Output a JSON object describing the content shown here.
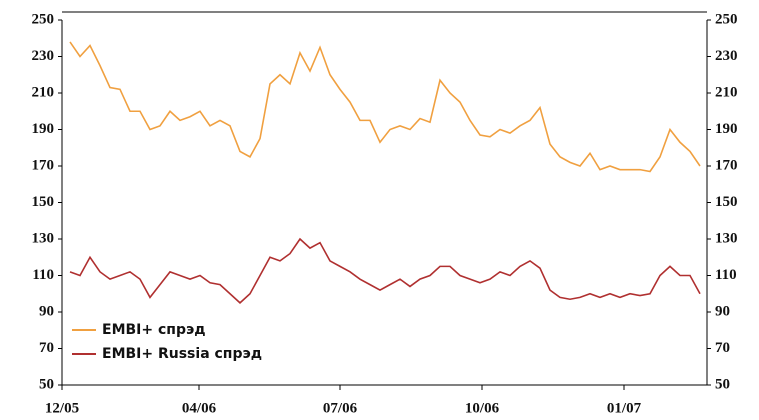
{
  "chart_data": {
    "type": "line",
    "xlim": [
      -0.8,
      63.7
    ],
    "xticks": [
      {
        "value": -0.8,
        "label": "12/05"
      },
      {
        "value": 12.9,
        "label": "04/06"
      },
      {
        "value": 27,
        "label": "07/06"
      },
      {
        "value": 41.2,
        "label": "10/06"
      },
      {
        "value": 55.4,
        "label": "01/07"
      }
    ],
    "ylim": [
      50,
      250
    ],
    "yticks": [
      50,
      70,
      90,
      110,
      130,
      150,
      170,
      190,
      210,
      230,
      250
    ],
    "y2lim": [
      50,
      250
    ],
    "y2ticks": [
      50,
      70,
      90,
      110,
      130,
      150,
      170,
      190,
      210,
      230,
      250
    ],
    "legend": "lower left",
    "series": [
      {
        "name": "EMBI+ спрэд",
        "color": "#f0a040",
        "values": [
          238,
          230,
          236,
          225,
          213,
          212,
          200,
          200,
          190,
          192,
          200,
          195,
          197,
          200,
          192,
          195,
          192,
          178,
          175,
          185,
          215,
          220,
          215,
          232,
          222,
          235,
          220,
          212,
          205,
          195,
          195,
          183,
          190,
          192,
          190,
          196,
          194,
          217,
          210,
          205,
          195,
          187,
          186,
          190,
          188,
          192,
          195,
          202,
          182,
          175,
          172,
          170,
          177,
          168,
          170,
          168,
          168,
          168,
          167,
          175,
          190,
          183,
          178,
          170
        ]
      },
      {
        "name": "EMBI+ Russia спрэд",
        "color": "#b03030",
        "values": [
          112,
          110,
          120,
          112,
          108,
          110,
          112,
          108,
          98,
          105,
          112,
          110,
          108,
          110,
          106,
          105,
          100,
          95,
          100,
          110,
          120,
          118,
          122,
          130,
          125,
          128,
          118,
          115,
          112,
          108,
          105,
          102,
          105,
          108,
          104,
          108,
          110,
          115,
          115,
          110,
          108,
          106,
          108,
          112,
          110,
          115,
          118,
          114,
          102,
          98,
          97,
          98,
          100,
          98,
          100,
          98,
          100,
          99,
          100,
          110,
          115,
          110,
          110,
          100
        ]
      }
    ]
  }
}
